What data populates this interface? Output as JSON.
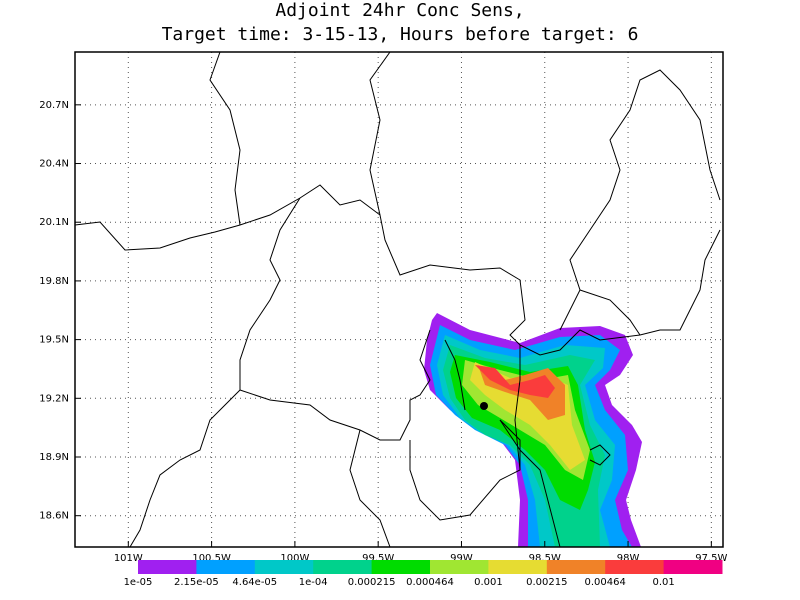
{
  "chart_data": {
    "type": "map",
    "title": [
      "Adjoint 24hr Conc Sens,",
      "Target time: 3-15-13, Hours before target: 6"
    ],
    "xlim": [
      -101.32,
      -97.43
    ],
    "ylim": [
      18.44,
      20.97
    ],
    "xticks": [
      {
        "value": -101,
        "label": "101W"
      },
      {
        "value": -100.5,
        "label": "100.5W"
      },
      {
        "value": -100,
        "label": "100W"
      },
      {
        "value": -99.5,
        "label": "99.5W"
      },
      {
        "value": -99,
        "label": "99W"
      },
      {
        "value": -98.5,
        "label": "98.5W"
      },
      {
        "value": -98,
        "label": "98W"
      },
      {
        "value": -97.5,
        "label": "97.5W"
      }
    ],
    "yticks": [
      {
        "value": 18.6,
        "label": "18.6N"
      },
      {
        "value": 18.9,
        "label": "18.9N"
      },
      {
        "value": 19.2,
        "label": "19.2N"
      },
      {
        "value": 19.5,
        "label": "19.5N"
      },
      {
        "value": 19.8,
        "label": "19.8N"
      },
      {
        "value": 20.1,
        "label": "20.1N"
      },
      {
        "value": 20.4,
        "label": "20.4N"
      },
      {
        "value": 20.7,
        "label": "20.7N"
      }
    ],
    "grid": true,
    "colorbar": {
      "colors": [
        "#a020f0",
        "#00a0ff",
        "#00c8c8",
        "#00d28c",
        "#00dc00",
        "#a0e632",
        "#e6dc32",
        "#f08228",
        "#fa3c3c",
        "#f00082"
      ],
      "levels": [
        {
          "value": 1e-05,
          "label": "1e-05"
        },
        {
          "value": 2.15e-05,
          "label": "2.15e-05"
        },
        {
          "value": 4.64e-05,
          "label": "4.64e-05"
        },
        {
          "value": 0.0001,
          "label": "1e-04"
        },
        {
          "value": 0.000215,
          "label": "0.000215"
        },
        {
          "value": 0.000464,
          "label": "0.000464"
        },
        {
          "value": 0.001,
          "label": "0.001"
        },
        {
          "value": 0.00215,
          "label": "0.00215"
        },
        {
          "value": 0.00464,
          "label": "0.00464"
        },
        {
          "value": 0.01,
          "label": "0.01"
        }
      ]
    }
  }
}
